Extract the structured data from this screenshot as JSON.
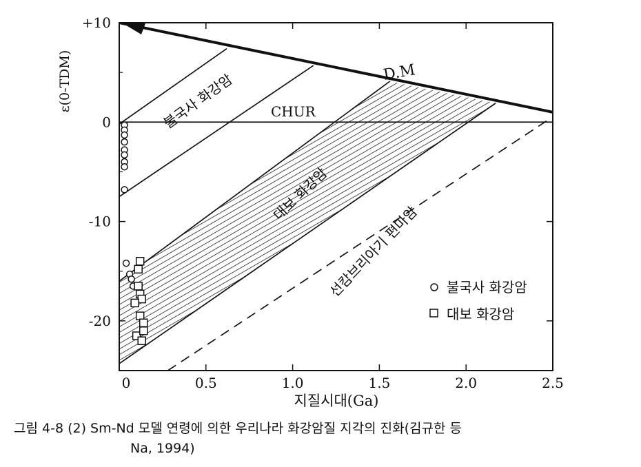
{
  "chart_data": {
    "type": "line",
    "xlabel": "지질시대(Ga)",
    "ylabel": "ε(0-TDM)",
    "xlim": [
      0,
      2.5
    ],
    "ylim": [
      -25,
      10
    ],
    "x_ticks": [
      {
        "value": 0,
        "label": "0"
      },
      {
        "value": 0.5,
        "label": "0.5"
      },
      {
        "value": 1.0,
        "label": "1.0"
      },
      {
        "value": 1.5,
        "label": "1.5"
      },
      {
        "value": 2.0,
        "label": "2.0"
      },
      {
        "value": 2.5,
        "label": "2.5"
      }
    ],
    "y_ticks": [
      {
        "value": 10,
        "label": "+10"
      },
      {
        "value": 0,
        "label": "0"
      },
      {
        "value": -10,
        "label": "-10"
      },
      {
        "value": -20,
        "label": "-20"
      }
    ],
    "lines": [
      {
        "name": "D.M",
        "points": [
          [
            0,
            10
          ],
          [
            2.5,
            1
          ]
        ]
      },
      {
        "name": "CHUR",
        "points": [
          [
            0,
            0
          ],
          [
            2.5,
            0
          ]
        ]
      },
      {
        "name": "bulguksa-upper",
        "points": [
          [
            0,
            -0.2
          ],
          [
            0.62,
            7.4
          ]
        ]
      },
      {
        "name": "bulguksa-lower",
        "points": [
          [
            0,
            -7.5
          ],
          [
            1.12,
            5.7
          ]
        ]
      },
      {
        "name": "daebo-upper",
        "points": [
          [
            0,
            -16
          ],
          [
            1.56,
            4.1
          ]
        ]
      },
      {
        "name": "daebo-lower",
        "points": [
          [
            0,
            -24.3
          ],
          [
            2.17,
            1.9
          ]
        ]
      },
      {
        "name": "precambrian",
        "style": "dashed",
        "points": [
          [
            0.28,
            -25
          ],
          [
            2.48,
            0.3
          ]
        ]
      }
    ],
    "series": [
      {
        "name": "불국사 화강암",
        "marker": "circle",
        "points": [
          [
            0.03,
            -0.3
          ],
          [
            0.03,
            -0.8
          ],
          [
            0.03,
            -1.3
          ],
          [
            0.03,
            -2.0
          ],
          [
            0.03,
            -2.8
          ],
          [
            0.03,
            -3.3
          ],
          [
            0.03,
            -4.0
          ],
          [
            0.03,
            -4.5
          ],
          [
            0.03,
            -6.8
          ],
          [
            0.04,
            -14.2
          ],
          [
            0.06,
            -15.3
          ],
          [
            0.07,
            -15.8
          ],
          [
            0.08,
            -16.5
          ]
        ]
      },
      {
        "name": "대보 화강암",
        "marker": "square",
        "points": [
          [
            0.12,
            -14.0
          ],
          [
            0.11,
            -14.8
          ],
          [
            0.11,
            -16.5
          ],
          [
            0.12,
            -17.3
          ],
          [
            0.13,
            -17.8
          ],
          [
            0.09,
            -18.2
          ],
          [
            0.12,
            -19.5
          ],
          [
            0.14,
            -20.2
          ],
          [
            0.1,
            -21.5
          ],
          [
            0.13,
            -22.0
          ],
          [
            0.14,
            -21.0
          ]
        ]
      }
    ],
    "annotations": [
      {
        "id": "dm",
        "text": "D.M"
      },
      {
        "id": "chur",
        "text": "CHUR"
      },
      {
        "id": "bulguksa",
        "text": "불국사 화강암"
      },
      {
        "id": "daebo",
        "text": "대보 화강암"
      },
      {
        "id": "precambrian",
        "text": "선캄브리아기 편마암"
      }
    ],
    "legend": {
      "placement": "bottom-right",
      "entries": [
        {
          "marker": "circle",
          "text": "불국사 화강암"
        },
        {
          "marker": "square",
          "text": "대보 화강암"
        }
      ]
    }
  },
  "caption": {
    "line1": "그림 4-8 (2)  Sm-Nd 모델 연령에 의한 우리나라 화강암질 지각의 진화(김규한 등",
    "line2": "Na, 1994)"
  }
}
